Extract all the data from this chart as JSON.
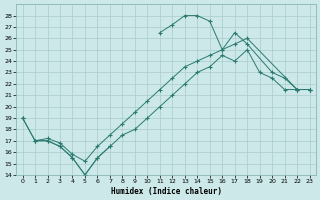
{
  "xlabel": "Humidex (Indice chaleur)",
  "ylabel": "",
  "xlim": [
    -0.5,
    23.5
  ],
  "ylim": [
    14,
    29
  ],
  "yticks": [
    14,
    15,
    16,
    17,
    18,
    19,
    20,
    21,
    22,
    23,
    24,
    25,
    26,
    27,
    28
  ],
  "xticks": [
    0,
    1,
    2,
    3,
    4,
    5,
    6,
    7,
    8,
    9,
    10,
    11,
    12,
    13,
    14,
    15,
    16,
    17,
    18,
    19,
    20,
    21,
    22,
    23
  ],
  "bg_color": "#cce8e8",
  "line_color": "#2a7a70",
  "grid_color": "#aacccc",
  "line1_x": [
    0,
    1,
    2,
    3,
    4,
    5,
    6,
    7
  ],
  "line1_y": [
    19.0,
    17.0,
    17.0,
    16.5,
    15.5,
    14.0,
    15.5,
    16.5
  ],
  "line2_x": [
    1,
    2,
    3,
    4,
    5,
    6,
    7,
    8,
    9,
    10,
    11,
    12,
    13,
    14,
    15,
    16,
    17,
    18,
    19,
    20,
    21,
    22,
    23
  ],
  "line2_y": [
    17.0,
    17.0,
    16.5,
    15.5,
    14.0,
    15.5,
    16.5,
    17.5,
    18.0,
    19.0,
    20.0,
    21.0,
    22.0,
    23.0,
    23.5,
    24.5,
    24.0,
    25.0,
    23.0,
    22.5,
    21.5,
    21.5,
    21.5
  ],
  "line3_x": [
    0,
    1,
    2,
    3,
    4,
    5,
    6,
    7,
    8,
    9,
    10,
    11,
    12,
    13,
    14,
    15,
    16,
    17,
    18,
    22,
    23
  ],
  "line3_y": [
    19.0,
    17.0,
    17.2,
    16.8,
    15.8,
    15.2,
    16.5,
    17.5,
    18.5,
    19.5,
    20.5,
    21.5,
    22.5,
    23.5,
    24.0,
    24.5,
    25.0,
    25.5,
    26.0,
    21.5,
    21.5
  ],
  "line4_x": [
    11,
    12,
    13,
    14,
    15,
    16,
    17,
    18,
    20,
    21,
    22,
    23
  ],
  "line4_y": [
    26.5,
    27.2,
    28.0,
    28.0,
    27.5,
    25.0,
    26.5,
    25.5,
    23.0,
    22.5,
    21.5,
    21.5
  ]
}
